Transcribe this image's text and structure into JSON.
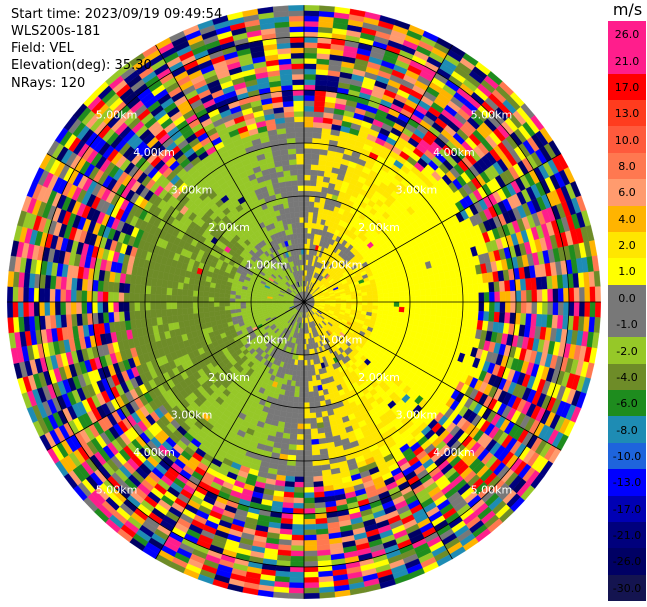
{
  "info": {
    "start_time": "Start time: 2023/09/19 09:49:54",
    "station": "WLS200s-181",
    "field": "Field: VEL",
    "elevation": "Elevation(deg): 35.30",
    "nrays": "NRays: 120"
  },
  "chart_data": {
    "type": "heatmap",
    "projection": "polar-ppi",
    "field": "VEL",
    "units": "m/s",
    "nrays": 120,
    "range_rings_km": [
      1.0,
      2.0,
      3.0,
      4.0,
      5.0
    ],
    "ring_labels": [
      "1.00km",
      "2.00km",
      "3.00km",
      "4.00km",
      "5.00km"
    ],
    "radial_lines_deg": [
      0,
      30,
      60,
      90,
      120,
      150,
      180,
      210,
      240,
      270,
      300,
      330
    ],
    "max_range_km": 5.6,
    "colorbar": {
      "title": "m/s",
      "ticks": [
        "26.0",
        "21.0",
        "17.0",
        "13.0",
        "10.0",
        "8.0",
        "6.0",
        "4.0",
        "2.0",
        "1.0",
        "0.0",
        "-1.0",
        "-2.0",
        "-4.0",
        "-6.0",
        "-8.0",
        "-10.0",
        "-13.0",
        "-17.0",
        "-21.0",
        "-26.0",
        "-30.0"
      ],
      "colors": [
        "#ff1e8c",
        "#ff1e8c",
        "#ff0000",
        "#ff3c1e",
        "#ff5a3c",
        "#ff7850",
        "#ff9b6e",
        "#ffb400",
        "#ffe600",
        "#ffff00",
        "#787878",
        "#787878",
        "#96c828",
        "#6e8c28",
        "#1e8c1e",
        "#1e8cb4",
        "#1e64dc",
        "#0000ff",
        "#0000b4",
        "#00007d",
        "#000064",
        "#141450"
      ]
    }
  }
}
